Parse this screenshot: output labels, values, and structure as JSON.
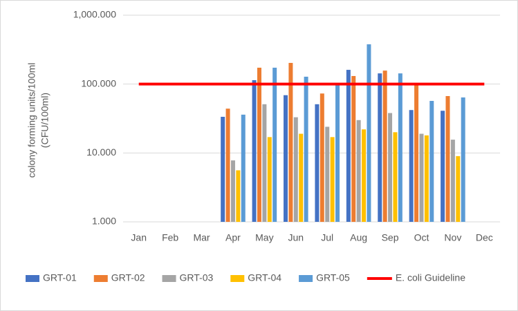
{
  "chart_data": {
    "type": "bar",
    "log_scale": true,
    "grid": true,
    "y_label": [
      "colony forming units/100ml",
      "(CFU/100ml)"
    ],
    "categories": [
      "Jan",
      "Feb",
      "Mar",
      "Apr",
      "May",
      "Jun",
      "Jul",
      "Aug",
      "Sep",
      "Oct",
      "Nov",
      "Dec"
    ],
    "series": [
      {
        "name": "GRT-01",
        "color": "#4472c4",
        "values": [
          null,
          null,
          null,
          33.5,
          114,
          69,
          51,
          161,
          143,
          42,
          41,
          null
        ]
      },
      {
        "name": "GRT-02",
        "color": "#ed7d31",
        "values": [
          null,
          null,
          null,
          44,
          173,
          203,
          73,
          131,
          157,
          100,
          67,
          null
        ]
      },
      {
        "name": "GRT-03",
        "color": "#a5a5a5",
        "values": [
          null,
          null,
          null,
          7.8,
          51,
          33,
          24,
          30,
          38,
          19,
          15.6,
          null
        ]
      },
      {
        "name": "GRT-04",
        "color": "#ffc000",
        "values": [
          null,
          null,
          null,
          5.6,
          17,
          19,
          17,
          22,
          20,
          18,
          9,
          null
        ]
      },
      {
        "name": "GRT-05",
        "color": "#5b9bd5",
        "values": [
          null,
          null,
          null,
          36,
          173,
          128,
          100,
          378,
          143,
          57,
          64,
          null
        ]
      },
      {
        "name": "E. coli Guideline",
        "color": "#ff0000",
        "kind": "line",
        "values": [
          100,
          100,
          100,
          100,
          100,
          100,
          100,
          100,
          100,
          100,
          100,
          100
        ]
      }
    ],
    "ylim": [
      1,
      1000
    ],
    "yticks": [
      {
        "value": 1,
        "label": "1.000"
      },
      {
        "value": 10,
        "label": "10.000"
      },
      {
        "value": 100,
        "label": "100.000"
      },
      {
        "value": 1000,
        "label": "1,000.000"
      }
    ],
    "legend": "bottom"
  }
}
